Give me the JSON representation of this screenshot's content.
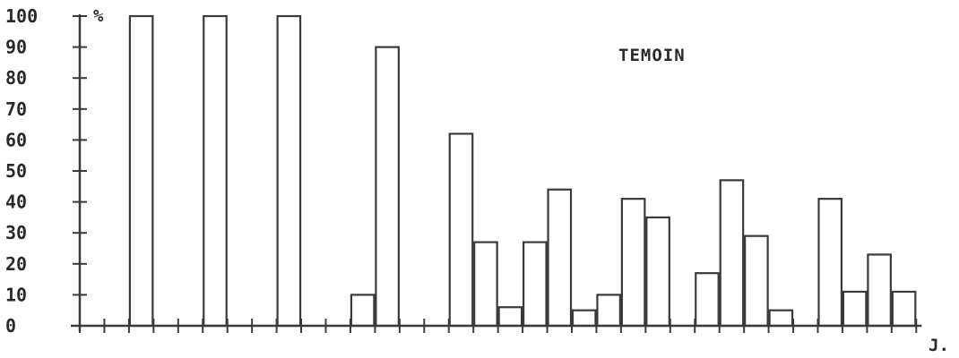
{
  "chart_data": {
    "type": "bar",
    "title": "TEMOIN",
    "ylabel": "%",
    "xlabel": "J.",
    "ylim": [
      0,
      100
    ],
    "yticks": [
      "100",
      "90",
      "80",
      "70",
      "60",
      "50",
      "40",
      "30",
      "20",
      "10",
      "0"
    ],
    "num_slots": 34,
    "bars": [
      {
        "slot": 2,
        "value": 100
      },
      {
        "slot": 5,
        "value": 100
      },
      {
        "slot": 8,
        "value": 100
      },
      {
        "slot": 11,
        "value": 10
      },
      {
        "slot": 12,
        "value": 90
      },
      {
        "slot": 15,
        "value": 62
      },
      {
        "slot": 16,
        "value": 27
      },
      {
        "slot": 17,
        "value": 6
      },
      {
        "slot": 18,
        "value": 27
      },
      {
        "slot": 19,
        "value": 44
      },
      {
        "slot": 20,
        "value": 5
      },
      {
        "slot": 21,
        "value": 10
      },
      {
        "slot": 22,
        "value": 41
      },
      {
        "slot": 23,
        "value": 35
      },
      {
        "slot": 25,
        "value": 17
      },
      {
        "slot": 26,
        "value": 47
      },
      {
        "slot": 27,
        "value": 29
      },
      {
        "slot": 28,
        "value": 5
      },
      {
        "slot": 30,
        "value": 41
      },
      {
        "slot": 31,
        "value": 11
      },
      {
        "slot": 32,
        "value": 23
      },
      {
        "slot": 33,
        "value": 11
      }
    ],
    "grid": false,
    "legend": "none"
  }
}
